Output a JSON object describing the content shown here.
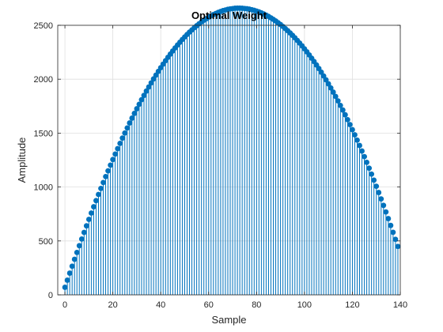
{
  "chart_data": {
    "type": "stem",
    "title": "Optimal Weight",
    "xlabel": "Sample",
    "ylabel": "Amplitude",
    "xlim": [
      -3,
      140
    ],
    "ylim": [
      0,
      2500
    ],
    "xticks": [
      0,
      20,
      40,
      60,
      80,
      100,
      120,
      140
    ],
    "yticks": [
      0,
      500,
      1000,
      1500,
      2000,
      2500
    ],
    "grid": true,
    "color": "#0072BD",
    "series": [
      {
        "x_start": 0,
        "x_step": 1,
        "values": [
          70,
          136,
          201,
          266,
          330,
          393,
          456,
          518,
          579,
          640,
          700,
          759,
          817,
          874,
          931,
          987,
          1042,
          1097,
          1150,
          1203,
          1255,
          1306,
          1356,
          1405,
          1454,
          1501,
          1548,
          1594,
          1639,
          1683,
          1726,
          1768,
          1810,
          1850,
          1890,
          1928,
          1966,
          2003,
          2038,
          2073,
          2107,
          2140,
          2172,
          2203,
          2233,
          2262,
          2290,
          2317,
          2343,
          2368,
          2392,
          2415,
          2437,
          2457,
          2477,
          2496,
          2514,
          2531,
          2547,
          2561,
          2575,
          2588,
          2600,
          2610,
          2620,
          2628,
          2636,
          2642,
          2648,
          2652,
          2655,
          2658,
          2659,
          2659,
          2658,
          2656,
          2654,
          2650,
          2645,
          2639,
          2632,
          2624,
          2615,
          2605,
          2594,
          2582,
          2569,
          2555,
          2540,
          2524,
          2507,
          2489,
          2470,
          2450,
          2429,
          2407,
          2384,
          2360,
          2335,
          2309,
          2282,
          2254,
          2225,
          2195,
          2164,
          2132,
          2099,
          2065,
          2030,
          1994,
          1957,
          1919,
          1880,
          1840,
          1799,
          1757,
          1714,
          1670,
          1625,
          1579,
          1532,
          1484,
          1435,
          1385,
          1334,
          1282,
          1229,
          1175,
          1120,
          1064,
          1007,
          949,
          890,
          830,
          769,
          707,
          644,
          580,
          515,
          449
        ]
      }
    ]
  }
}
